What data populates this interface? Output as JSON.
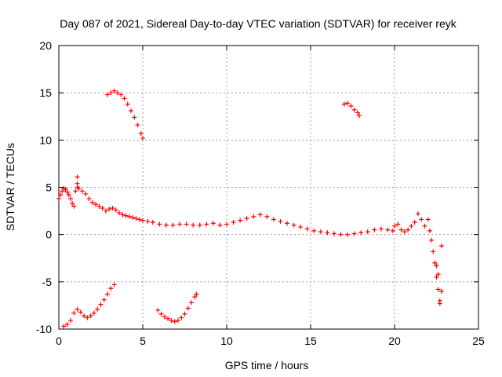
{
  "chart_data": {
    "type": "scatter",
    "title": "Day 087 of 2021, Sidereal Day-to-day VTEC variation (SDTVAR) for receiver reyk",
    "xlabel": "GPS time / hours",
    "ylabel": "SDTVAR / TECUs",
    "xlim": [
      0,
      25
    ],
    "ylim": [
      -10,
      20
    ],
    "xticks": [
      "0",
      "5",
      "10",
      "15",
      "20",
      "25"
    ],
    "yticks": [
      "-10",
      "-5",
      "0",
      "5",
      "10",
      "15",
      "20"
    ],
    "xtick_values": [
      0,
      5,
      10,
      15,
      20,
      25
    ],
    "ytick_values": [
      -10,
      -5,
      0,
      5,
      10,
      15,
      20
    ],
    "grid": true,
    "marker": "+",
    "series_color": "#ff0000",
    "series": [
      {
        "name": "main",
        "x": [
          0.0,
          0.1,
          0.2,
          0.3,
          0.4,
          0.5,
          0.6,
          0.7,
          0.8,
          0.9,
          1.0,
          1.1,
          1.2,
          1.4,
          1.6,
          1.8,
          2.0,
          2.2,
          2.4,
          2.6,
          2.8,
          3.0,
          3.2,
          3.4,
          3.6,
          3.8,
          4.0,
          4.2,
          4.4,
          4.6,
          4.8,
          5.0,
          5.3,
          5.6,
          6.0,
          6.4,
          6.8,
          7.2,
          7.6,
          8.0,
          8.4,
          8.8,
          9.2,
          9.6,
          10.0,
          10.4,
          10.8,
          11.2,
          11.6,
          12.0,
          12.4,
          12.8,
          13.2,
          13.6,
          14.0,
          14.4,
          14.8,
          15.2,
          15.6,
          16.0,
          16.4,
          16.8,
          17.2,
          17.6,
          18.0,
          18.4,
          18.8,
          19.2,
          19.6,
          19.9
        ],
        "y": [
          3.8,
          4.2,
          4.6,
          4.9,
          4.8,
          4.5,
          4.2,
          3.8,
          3.3,
          3.0,
          4.6,
          5.0,
          4.9,
          4.6,
          4.3,
          3.8,
          3.4,
          3.2,
          3.0,
          2.8,
          2.5,
          2.7,
          2.8,
          2.6,
          2.3,
          2.1,
          2.0,
          1.9,
          1.8,
          1.7,
          1.6,
          1.5,
          1.4,
          1.3,
          1.1,
          1.0,
          1.0,
          1.1,
          1.1,
          1.0,
          1.0,
          1.1,
          1.2,
          1.0,
          1.1,
          1.3,
          1.5,
          1.7,
          1.9,
          2.1,
          1.9,
          1.6,
          1.4,
          1.2,
          1.0,
          0.8,
          0.6,
          0.4,
          0.3,
          0.2,
          0.1,
          0.0,
          0.0,
          0.1,
          0.2,
          0.3,
          0.5,
          0.6,
          0.5,
          0.4
        ]
      },
      {
        "name": "arc-high-1",
        "x": [
          2.9,
          3.1,
          3.3,
          3.5,
          3.7,
          3.9,
          4.1,
          4.3,
          4.5,
          4.7,
          4.9,
          5.0
        ],
        "y": [
          14.8,
          15.0,
          15.2,
          15.0,
          14.8,
          14.4,
          13.8,
          13.1,
          12.4,
          11.6,
          10.7,
          10.2
        ]
      },
      {
        "name": "arc-high-2",
        "x": [
          17.0,
          17.2,
          17.4,
          17.6,
          17.8,
          17.9
        ],
        "y": [
          13.8,
          13.9,
          13.6,
          13.2,
          12.9,
          12.6
        ]
      },
      {
        "name": "arc-low-1",
        "x": [
          0.3,
          0.5,
          0.7,
          0.9,
          1.1,
          1.3,
          1.5,
          1.7,
          1.9,
          2.1,
          2.3,
          2.5,
          2.7,
          2.9,
          3.1,
          3.3
        ],
        "y": [
          -9.7,
          -9.5,
          -9.1,
          -8.3,
          -7.9,
          -8.2,
          -8.6,
          -8.8,
          -8.6,
          -8.3,
          -7.9,
          -7.4,
          -6.9,
          -6.3,
          -5.7,
          -5.3
        ]
      },
      {
        "name": "arc-low-2",
        "x": [
          5.9,
          6.1,
          6.3,
          6.5,
          6.7,
          6.9,
          7.1,
          7.3,
          7.5,
          7.7,
          7.9,
          8.1,
          8.2
        ],
        "y": [
          -8.0,
          -8.4,
          -8.7,
          -8.9,
          -9.1,
          -9.2,
          -9.1,
          -8.8,
          -8.4,
          -7.8,
          -7.2,
          -6.6,
          -6.3
        ]
      },
      {
        "name": "late-segment",
        "x": [
          20.0,
          20.2,
          20.4,
          20.6,
          20.8,
          21.0,
          21.2,
          21.4,
          21.6,
          21.8,
          22.0,
          22.1,
          22.2,
          22.3,
          22.4,
          22.5,
          22.6,
          22.7,
          22.8
        ],
        "y": [
          0.9,
          1.1,
          0.5,
          0.3,
          0.5,
          0.9,
          1.3,
          2.2,
          1.6,
          0.9,
          1.6,
          0.4,
          -0.6,
          -1.8,
          -3.0,
          -4.5,
          -5.8,
          -7.0,
          -1.2
        ]
      },
      {
        "name": "outliers",
        "x": [
          1.1,
          1.1,
          22.7,
          22.8,
          22.6,
          22.5
        ],
        "y": [
          6.1,
          5.4,
          -7.3,
          -6.0,
          -4.2,
          -3.3
        ]
      }
    ]
  }
}
